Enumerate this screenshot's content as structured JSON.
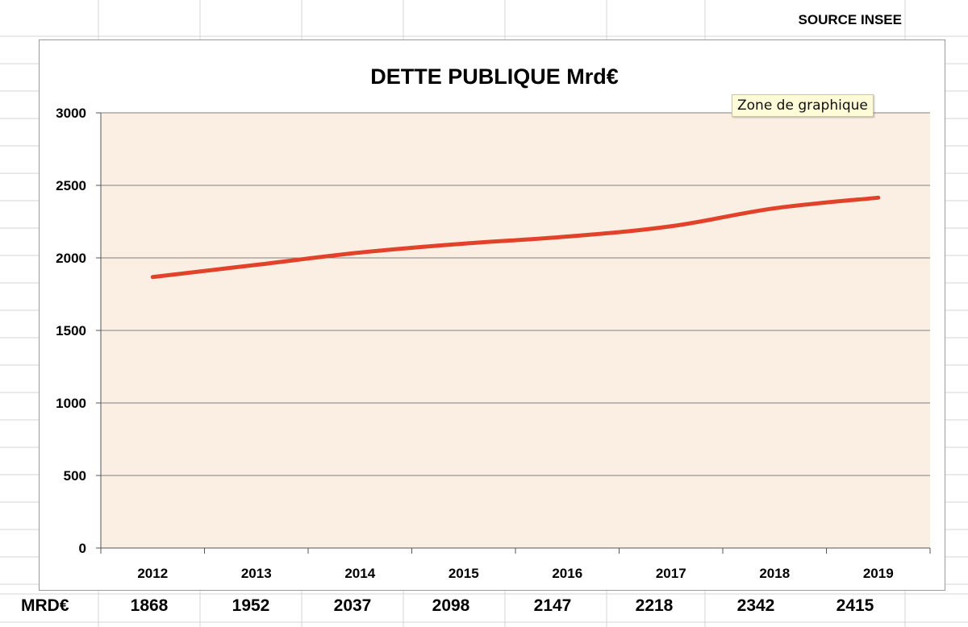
{
  "sheet": {
    "source_label": "SOURCE INSEE",
    "row_label": "MRD€",
    "row_values": [
      "1868",
      "1952",
      "2037",
      "2098",
      "2147",
      "2218",
      "2342",
      "2415"
    ]
  },
  "tooltip": {
    "text": "Zone de graphique"
  },
  "colors": {
    "line": "#e2412a",
    "plot_bg": "#fbeee3",
    "grid": "#808080"
  },
  "chart_data": {
    "type": "line",
    "title": "DETTE PUBLIQUE Mrd€",
    "xlabel": "",
    "ylabel": "",
    "categories": [
      "2012",
      "2013",
      "2014",
      "2015",
      "2016",
      "2017",
      "2018",
      "2019"
    ],
    "series": [
      {
        "values": [
          1868,
          1952,
          2037,
          2098,
          2147,
          2218,
          2342,
          2415
        ]
      }
    ],
    "ylim": [
      0,
      3000
    ],
    "yticks": [
      0,
      500,
      1000,
      1500,
      2000,
      2500,
      3000
    ],
    "grid": true,
    "legend": "none"
  }
}
